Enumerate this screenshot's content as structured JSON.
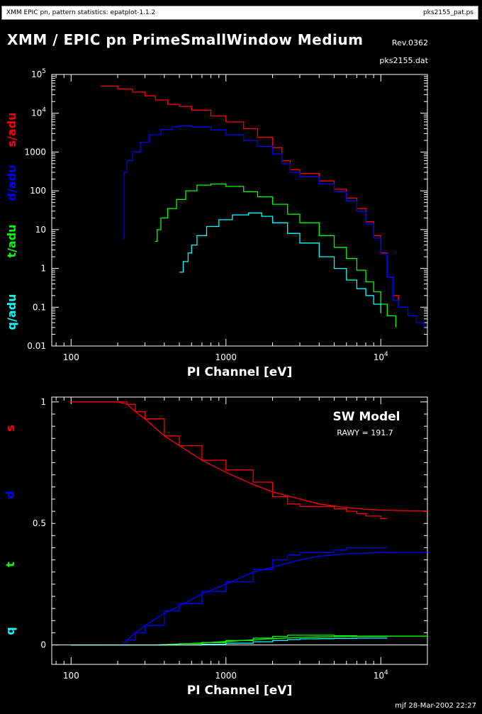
{
  "header": {
    "left": "XMM EPIC pn, pattern statistics: epatplot-1.1.2",
    "right": "pks2155_pat.ps"
  },
  "title": "XMM / EPIC pn PrimeSmallWindow Medium",
  "revision": "Rev.0362",
  "filename": "pks2155.dat",
  "footer": "mjf 28-Mar-2002 22:27",
  "colors": {
    "s": "#ff0000",
    "d": "#0000ff",
    "t": "#00ff00",
    "q": "#00ffff",
    "axes": "#ffffff",
    "background": "#000000"
  },
  "chart_data": [
    {
      "type": "line",
      "xlabel": "PI Channel [eV]",
      "x_scale": "log",
      "y_scale": "log",
      "xlim": [
        75,
        20000
      ],
      "ylim": [
        0.01,
        100000
      ],
      "x_ticks": [
        "100",
        "1000",
        "10^4"
      ],
      "y_ticks": [
        "0.01",
        "0.1",
        "1",
        "10",
        "100",
        "1000",
        "10^4",
        "10^5"
      ],
      "ylabels": [
        "s/adu",
        "d/adu",
        "t/adu",
        "q/adu"
      ],
      "series": [
        {
          "name": "s/adu",
          "color": "#ff0000",
          "x": [
            155,
            200,
            250,
            300,
            350,
            420,
            500,
            600,
            800,
            1000,
            1300,
            1600,
            2000,
            2300,
            2600,
            3000,
            4000,
            5000,
            6000,
            7000,
            8000,
            9000,
            10000,
            11000,
            12000,
            13000
          ],
          "y": [
            50000,
            42000,
            35000,
            28000,
            22000,
            17000,
            15000,
            12000,
            8500,
            6000,
            4000,
            2400,
            1300,
            600,
            350,
            280,
            180,
            110,
            65,
            35,
            16,
            7,
            2.5,
            0.6,
            0.2,
            0.1
          ]
        },
        {
          "name": "d/adu",
          "color": "#0000ff",
          "x": [
            215,
            220,
            230,
            250,
            280,
            320,
            380,
            450,
            500,
            600,
            800,
            1000,
            1300,
            1600,
            2000,
            2300,
            2600,
            3000,
            4000,
            5000,
            6000,
            7000,
            8000,
            9000,
            10000,
            11000,
            12000,
            13000,
            15000,
            17000,
            19000
          ],
          "y": [
            6,
            300,
            600,
            1000,
            1800,
            2800,
            3800,
            4500,
            4700,
            4400,
            3700,
            2800,
            2000,
            1400,
            900,
            500,
            300,
            230,
            150,
            95,
            55,
            30,
            14,
            6,
            2.4,
            0.6,
            0.15,
            0.1,
            0.06,
            0.04,
            0.03
          ]
        },
        {
          "name": "t/adu",
          "color": "#00ff00",
          "x": [
            350,
            360,
            380,
            420,
            480,
            550,
            650,
            800,
            1000,
            1300,
            1600,
            2000,
            2500,
            3000,
            4000,
            5000,
            6000,
            7000,
            8000,
            9000,
            10000,
            11000,
            12500
          ],
          "y": [
            5,
            10,
            20,
            35,
            60,
            100,
            140,
            150,
            130,
            95,
            70,
            45,
            25,
            15,
            7,
            3.5,
            1.8,
            0.9,
            0.45,
            0.25,
            0.12,
            0.06,
            0.03
          ]
        },
        {
          "name": "q/adu",
          "color": "#00ffff",
          "x": [
            500,
            530,
            570,
            600,
            650,
            750,
            900,
            1100,
            1400,
            1700,
            2000,
            2500,
            3000,
            4000,
            5000,
            6000,
            7000,
            8000,
            9000,
            10000
          ],
          "y": [
            0.8,
            1.5,
            2.5,
            4,
            7,
            12,
            18,
            24,
            27,
            22,
            15,
            8,
            4.5,
            2,
            1,
            0.5,
            0.3,
            0.2,
            0.12,
            0.07
          ]
        }
      ]
    },
    {
      "type": "line",
      "xlabel": "PI Channel [eV]",
      "x_scale": "log",
      "xlim": [
        75,
        20000
      ],
      "ylim": [
        -0.08,
        1.02
      ],
      "x_ticks": [
        "100",
        "1000",
        "10^4"
      ],
      "y_ticks": [
        "0",
        "0.5",
        "1"
      ],
      "ylabels": [
        "s",
        "d",
        "t",
        "q"
      ],
      "annotation": {
        "title": "SW Model",
        "subtitle": "RAWY = 191.7"
      },
      "series": [
        {
          "name": "s",
          "color": "#ff0000",
          "x": [
            100,
            200,
            230,
            260,
            300,
            400,
            500,
            700,
            1000,
            1500,
            2000,
            2500,
            3000,
            4000,
            5000,
            6000,
            7000,
            8000,
            9000,
            10000,
            11000
          ],
          "y": [
            1.0,
            1.0,
            0.99,
            0.96,
            0.93,
            0.86,
            0.82,
            0.76,
            0.72,
            0.67,
            0.61,
            0.58,
            0.57,
            0.57,
            0.56,
            0.55,
            0.54,
            0.53,
            0.53,
            0.52,
            0.52
          ]
        },
        {
          "name": "s model",
          "color": "#ff0000",
          "x": [
            100,
            200,
            230,
            260,
            300,
            400,
            500,
            700,
            1000,
            1500,
            2000,
            3000,
            4000,
            6000,
            8000,
            10000,
            15000,
            20000
          ],
          "y": [
            1.0,
            1.0,
            0.99,
            0.96,
            0.93,
            0.86,
            0.82,
            0.76,
            0.71,
            0.66,
            0.63,
            0.6,
            0.58,
            0.565,
            0.558,
            0.555,
            0.552,
            0.551
          ]
        },
        {
          "name": "d",
          "color": "#0000ff",
          "x": [
            100,
            215,
            230,
            260,
            300,
            400,
            500,
            700,
            1000,
            1500,
            2000,
            2500,
            3000,
            4000,
            5000,
            6000,
            7000,
            8000,
            9000,
            10000,
            11000
          ],
          "y": [
            0,
            0,
            0.02,
            0.05,
            0.08,
            0.14,
            0.17,
            0.22,
            0.26,
            0.31,
            0.35,
            0.37,
            0.38,
            0.38,
            0.39,
            0.4,
            0.4,
            0.4,
            0.4,
            0.4,
            0.4
          ]
        },
        {
          "name": "d model",
          "color": "#0000ff",
          "x": [
            100,
            215,
            230,
            260,
            300,
            400,
            500,
            700,
            1000,
            1500,
            2000,
            3000,
            4000,
            6000,
            8000,
            10000,
            15000,
            20000
          ],
          "y": [
            0,
            0,
            0.02,
            0.05,
            0.08,
            0.13,
            0.16,
            0.21,
            0.25,
            0.3,
            0.32,
            0.35,
            0.365,
            0.375,
            0.378,
            0.38,
            0.381,
            0.381
          ]
        },
        {
          "name": "t",
          "color": "#00ff00",
          "x": [
            100,
            350,
            500,
            700,
            1000,
            1500,
            2000,
            2500,
            3000,
            4000,
            5000,
            7000,
            9000,
            11000
          ],
          "y": [
            0,
            0,
            0.005,
            0.01,
            0.018,
            0.028,
            0.035,
            0.04,
            0.04,
            0.04,
            0.038,
            0.035,
            0.035,
            0.035
          ]
        },
        {
          "name": "t model",
          "color": "#00ff00",
          "x": [
            100,
            350,
            500,
            700,
            1000,
            1500,
            2000,
            3000,
            4000,
            6000,
            8000,
            10000,
            15000,
            20000
          ],
          "y": [
            0,
            0,
            0.004,
            0.008,
            0.014,
            0.021,
            0.026,
            0.031,
            0.033,
            0.035,
            0.036,
            0.036,
            0.036,
            0.036
          ]
        },
        {
          "name": "q",
          "color": "#00ffff",
          "x": [
            100,
            500,
            700,
            1000,
            1500,
            2000,
            2500,
            3000,
            4000,
            5000,
            7000,
            9000,
            11000
          ],
          "y": [
            0,
            0,
            0.003,
            0.007,
            0.013,
            0.018,
            0.022,
            0.025,
            0.026,
            0.027,
            0.028,
            0.028,
            0.028
          ]
        }
      ]
    }
  ]
}
